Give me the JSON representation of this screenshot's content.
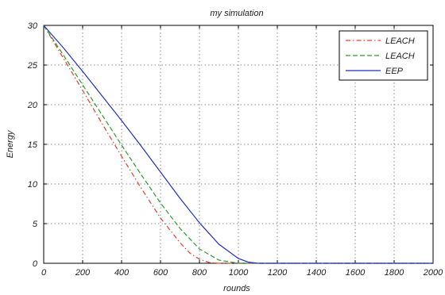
{
  "chart_data": {
    "type": "line",
    "title": "my simulation",
    "xlabel": "rounds",
    "ylabel": "Energy",
    "xlim": [
      0,
      2000
    ],
    "ylim": [
      0,
      30
    ],
    "xticks": [
      0,
      200,
      400,
      600,
      800,
      1000,
      1200,
      1400,
      1600,
      1800,
      2000
    ],
    "yticks": [
      0,
      5,
      10,
      15,
      20,
      25,
      30
    ],
    "xtick_labels": [
      "0",
      "200",
      "400",
      "600",
      "800",
      "1000",
      "1200",
      "1400",
      "1600",
      "1800",
      "2000"
    ],
    "ytick_labels": [
      "0",
      "5",
      "10",
      "15",
      "20",
      "25",
      "30"
    ],
    "grid": true,
    "legend_position": "top-right",
    "series": [
      {
        "name": "LEACH",
        "color": "#e8412c",
        "style": "dash-dot",
        "x": [
          0,
          100,
          200,
          300,
          400,
          500,
          600,
          700,
          750,
          800,
          850,
          900,
          2000
        ],
        "y": [
          30,
          25.9,
          21.8,
          17.6,
          13.5,
          9.5,
          5.7,
          2.6,
          1.3,
          0.5,
          0.1,
          0,
          0
        ]
      },
      {
        "name": "LEACH",
        "color": "#2e9b2e",
        "style": "dashed",
        "x": [
          0,
          100,
          200,
          300,
          400,
          500,
          600,
          700,
          800,
          900,
          1000,
          1100,
          2000
        ],
        "y": [
          30,
          26.3,
          22.5,
          18.7,
          14.9,
          11.2,
          7.6,
          4.4,
          1.8,
          0.4,
          0,
          0,
          0
        ]
      },
      {
        "name": "EEP",
        "color": "#1f2fc8",
        "style": "solid",
        "x": [
          0,
          100,
          200,
          300,
          400,
          500,
          600,
          700,
          800,
          900,
          1000,
          1050,
          1100,
          2000
        ],
        "y": [
          30,
          27.2,
          24.2,
          21.1,
          18.0,
          14.8,
          11.5,
          8.2,
          5.1,
          2.4,
          0.6,
          0.15,
          0,
          0
        ]
      }
    ]
  }
}
